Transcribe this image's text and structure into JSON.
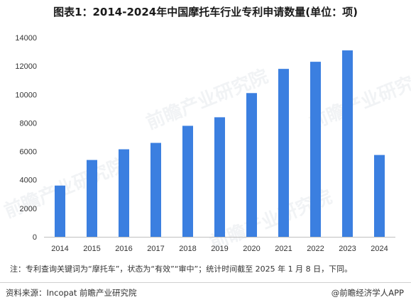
{
  "title": "图表1：2014-2024年中国摩托车行业专利申请数量(单位：项)",
  "note": "注：专利查询关键词为“摩托车”，状态为“有效”“审中”；统计时间截至 2025 年 1 月 8 日，下同。",
  "source": "资料来源：Incopat 前瞻产业研究院",
  "brand": "@前瞻经济学人APP",
  "watermark": "前瞻产业研究院",
  "colors": {
    "bar": "#3b7fe0",
    "axis": "#bfbfbf",
    "text": "#333333"
  },
  "chart_data": {
    "type": "bar",
    "title": "图表1：2014-2024年中国摩托车行业专利申请数量(单位：项)",
    "xlabel": "",
    "ylabel": "",
    "categories": [
      "2014",
      "2015",
      "2016",
      "2017",
      "2018",
      "2019",
      "2020",
      "2021",
      "2022",
      "2023",
      "2024"
    ],
    "values": [
      3600,
      5400,
      6150,
      6600,
      7800,
      8400,
      10100,
      11800,
      12300,
      13100,
      5750
    ],
    "ylim": [
      0,
      14000
    ],
    "yticks": [
      0,
      2000,
      4000,
      6000,
      8000,
      10000,
      12000,
      14000
    ],
    "grid": false,
    "legend": "none"
  }
}
